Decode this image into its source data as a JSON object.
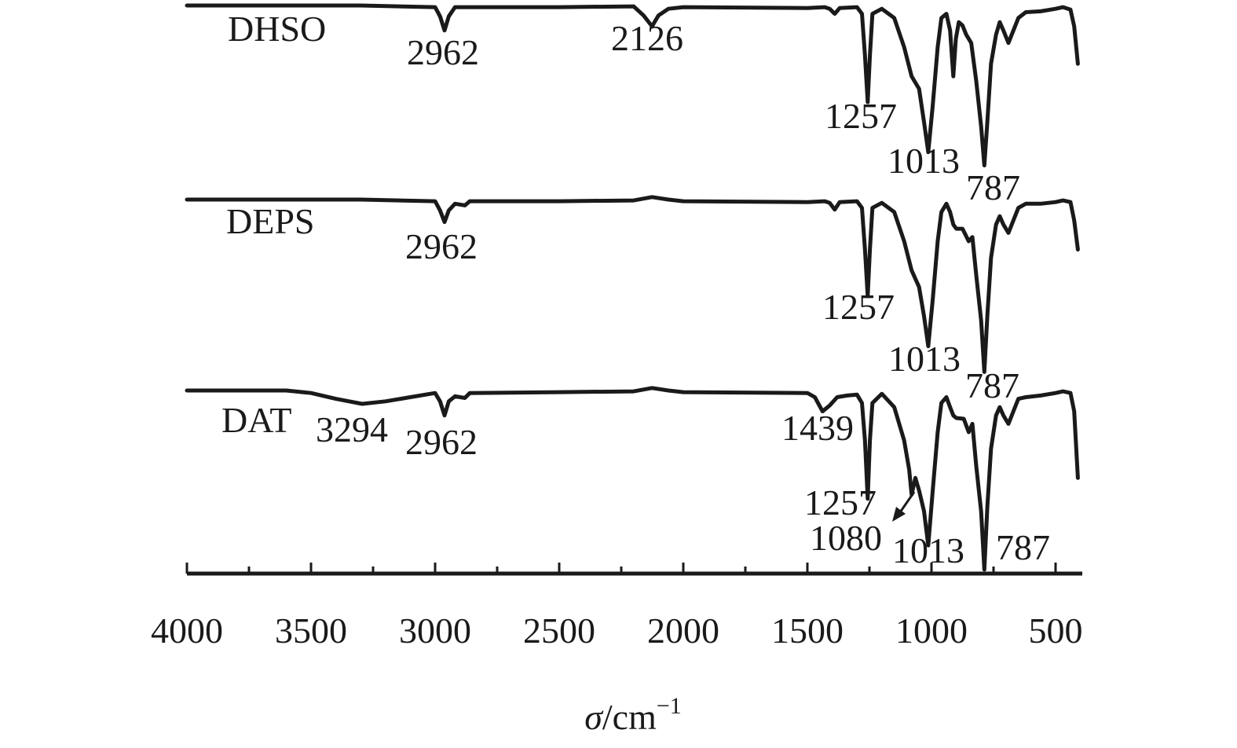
{
  "chart_data": {
    "type": "line",
    "xlabel_symbol": "σ",
    "xlabel_unit": "/cm",
    "xlabel_exp": "−1",
    "xlim": [
      4000,
      400
    ],
    "xticks": [
      4000,
      3500,
      3000,
      2500,
      2000,
      1500,
      1000,
      500
    ],
    "series": [
      {
        "name": "DHSO",
        "points": [
          [
            4000,
            0
          ],
          [
            3300,
            0
          ],
          [
            3000,
            0.2
          ],
          [
            2980,
            1.3
          ],
          [
            2962,
            3.0
          ],
          [
            2945,
            1.3
          ],
          [
            2920,
            0.2
          ],
          [
            2500,
            0.2
          ],
          [
            2200,
            0.1
          ],
          [
            2160,
            1.2
          ],
          [
            2126,
            2.5
          ],
          [
            2100,
            1.2
          ],
          [
            2060,
            0.4
          ],
          [
            2000,
            0.2
          ],
          [
            1500,
            0.3
          ],
          [
            1430,
            0.2
          ],
          [
            1410,
            0.4
          ],
          [
            1390,
            1.0
          ],
          [
            1370,
            0.3
          ],
          [
            1300,
            0.2
          ],
          [
            1280,
            1.0
          ],
          [
            1268,
            6.0
          ],
          [
            1257,
            11.6
          ],
          [
            1248,
            6.0
          ],
          [
            1238,
            1.0
          ],
          [
            1200,
            0.4
          ],
          [
            1150,
            1.5
          ],
          [
            1110,
            5.0
          ],
          [
            1080,
            8.5
          ],
          [
            1050,
            10.0
          ],
          [
            1030,
            14.0
          ],
          [
            1013,
            17.6
          ],
          [
            995,
            12.0
          ],
          [
            975,
            5.0
          ],
          [
            960,
            1.5
          ],
          [
            940,
            1.0
          ],
          [
            925,
            3.0
          ],
          [
            912,
            8.5
          ],
          [
            902,
            4.0
          ],
          [
            890,
            2.0
          ],
          [
            875,
            2.4
          ],
          [
            860,
            3.5
          ],
          [
            840,
            4.5
          ],
          [
            820,
            9.0
          ],
          [
            800,
            14.5
          ],
          [
            787,
            19.2
          ],
          [
            775,
            14.0
          ],
          [
            760,
            7.0
          ],
          [
            740,
            3.5
          ],
          [
            725,
            2.0
          ],
          [
            710,
            3.0
          ],
          [
            690,
            4.5
          ],
          [
            670,
            3.0
          ],
          [
            650,
            1.5
          ],
          [
            620,
            0.8
          ],
          [
            560,
            0.7
          ],
          [
            500,
            0.4
          ],
          [
            470,
            0.2
          ],
          [
            440,
            0.5
          ],
          [
            425,
            2.5
          ],
          [
            410,
            7.0
          ]
        ]
      },
      {
        "name": "DEPS",
        "points": [
          [
            4000,
            0
          ],
          [
            3300,
            0
          ],
          [
            3000,
            0.2
          ],
          [
            2980,
            1.3
          ],
          [
            2962,
            2.7
          ],
          [
            2945,
            1.3
          ],
          [
            2920,
            0.5
          ],
          [
            2880,
            0.7
          ],
          [
            2860,
            0.2
          ],
          [
            2500,
            0.2
          ],
          [
            2200,
            0.1
          ],
          [
            2126,
            -0.3
          ],
          [
            2060,
            0
          ],
          [
            2000,
            0.2
          ],
          [
            1500,
            0.3
          ],
          [
            1430,
            0.2
          ],
          [
            1410,
            0.4
          ],
          [
            1390,
            1.2
          ],
          [
            1370,
            0.3
          ],
          [
            1300,
            0.2
          ],
          [
            1280,
            1.0
          ],
          [
            1268,
            6.0
          ],
          [
            1257,
            11.6
          ],
          [
            1248,
            6.0
          ],
          [
            1238,
            1.0
          ],
          [
            1200,
            0.4
          ],
          [
            1150,
            1.5
          ],
          [
            1110,
            5.0
          ],
          [
            1080,
            8.5
          ],
          [
            1050,
            10.5
          ],
          [
            1030,
            14.0
          ],
          [
            1013,
            17.6
          ],
          [
            995,
            12.0
          ],
          [
            975,
            5.0
          ],
          [
            960,
            1.5
          ],
          [
            940,
            0.5
          ],
          [
            925,
            1.5
          ],
          [
            912,
            3.0
          ],
          [
            900,
            3.5
          ],
          [
            875,
            3.5
          ],
          [
            850,
            5.0
          ],
          [
            835,
            4.5
          ],
          [
            820,
            9.0
          ],
          [
            800,
            14.5
          ],
          [
            787,
            20.7
          ],
          [
            775,
            14.0
          ],
          [
            760,
            7.0
          ],
          [
            740,
            3.0
          ],
          [
            725,
            2.0
          ],
          [
            710,
            3.0
          ],
          [
            690,
            4.0
          ],
          [
            670,
            2.5
          ],
          [
            650,
            1.0
          ],
          [
            620,
            0.5
          ],
          [
            560,
            0.5
          ],
          [
            500,
            0.3
          ],
          [
            470,
            0.1
          ],
          [
            440,
            0.3
          ],
          [
            425,
            2.5
          ],
          [
            410,
            6.0
          ]
        ]
      },
      {
        "name": "DAT",
        "points": [
          [
            4000,
            0
          ],
          [
            3600,
            0
          ],
          [
            3500,
            0.3
          ],
          [
            3400,
            1.0
          ],
          [
            3294,
            1.6
          ],
          [
            3200,
            1.3
          ],
          [
            3100,
            0.8
          ],
          [
            3000,
            0.3
          ],
          [
            2980,
            1.3
          ],
          [
            2962,
            3.0
          ],
          [
            2945,
            1.3
          ],
          [
            2920,
            0.7
          ],
          [
            2880,
            0.9
          ],
          [
            2860,
            0.3
          ],
          [
            2500,
            0.2
          ],
          [
            2200,
            0.1
          ],
          [
            2126,
            -0.3
          ],
          [
            2060,
            0
          ],
          [
            2000,
            0.2
          ],
          [
            1500,
            0.3
          ],
          [
            1470,
            0.8
          ],
          [
            1439,
            2.5
          ],
          [
            1410,
            1.8
          ],
          [
            1380,
            0.8
          ],
          [
            1340,
            0.6
          ],
          [
            1300,
            0.5
          ],
          [
            1280,
            1.5
          ],
          [
            1268,
            6.0
          ],
          [
            1257,
            13.0
          ],
          [
            1248,
            6.0
          ],
          [
            1238,
            1.5
          ],
          [
            1200,
            0.4
          ],
          [
            1150,
            2.0
          ],
          [
            1110,
            6.0
          ],
          [
            1090,
            9.5
          ],
          [
            1080,
            12.5
          ],
          [
            1065,
            10.5
          ],
          [
            1050,
            12.0
          ],
          [
            1030,
            14.5
          ],
          [
            1013,
            18.6
          ],
          [
            995,
            12.0
          ],
          [
            975,
            5.0
          ],
          [
            960,
            1.5
          ],
          [
            940,
            0.8
          ],
          [
            925,
            2.0
          ],
          [
            912,
            3.0
          ],
          [
            900,
            3.3
          ],
          [
            870,
            3.4
          ],
          [
            850,
            5.0
          ],
          [
            835,
            4.0
          ],
          [
            820,
            9.0
          ],
          [
            800,
            14.5
          ],
          [
            787,
            21.5
          ],
          [
            775,
            14.0
          ],
          [
            760,
            7.0
          ],
          [
            740,
            3.0
          ],
          [
            725,
            2.0
          ],
          [
            710,
            3.0
          ],
          [
            690,
            4.0
          ],
          [
            670,
            2.5
          ],
          [
            650,
            1.0
          ],
          [
            620,
            0.8
          ],
          [
            560,
            0.6
          ],
          [
            500,
            0.3
          ],
          [
            470,
            0.1
          ],
          [
            440,
            0.3
          ],
          [
            425,
            2.5
          ],
          [
            410,
            10.5
          ]
        ]
      }
    ],
    "annotations": [
      {
        "series": "DHSO",
        "text": "2962",
        "x": 2962
      },
      {
        "series": "DHSO",
        "text": "2126",
        "x": 2126
      },
      {
        "series": "DHSO",
        "text": "1257",
        "x": 1257
      },
      {
        "series": "DHSO",
        "text": "1013",
        "x": 1013
      },
      {
        "series": "DHSO",
        "text": "787",
        "x": 787
      },
      {
        "series": "DEPS",
        "text": "2962",
        "x": 2962
      },
      {
        "series": "DEPS",
        "text": "1257",
        "x": 1257
      },
      {
        "series": "DEPS",
        "text": "1013",
        "x": 1013
      },
      {
        "series": "DEPS",
        "text": "787",
        "x": 787
      },
      {
        "series": "DAT",
        "text": "3294",
        "x": 3294
      },
      {
        "series": "DAT",
        "text": "2962",
        "x": 2962
      },
      {
        "series": "DAT",
        "text": "1439",
        "x": 1439
      },
      {
        "series": "DAT",
        "text": "1257",
        "x": 1257
      },
      {
        "series": "DAT",
        "text": "1080",
        "x": 1080
      },
      {
        "series": "DAT",
        "text": "1013",
        "x": 1013
      },
      {
        "series": "DAT",
        "text": "787",
        "x": 787
      }
    ],
    "grid": false,
    "legend": "none",
    "colors": {
      "line": "#1a1a1a",
      "background": "#ffffff"
    }
  }
}
